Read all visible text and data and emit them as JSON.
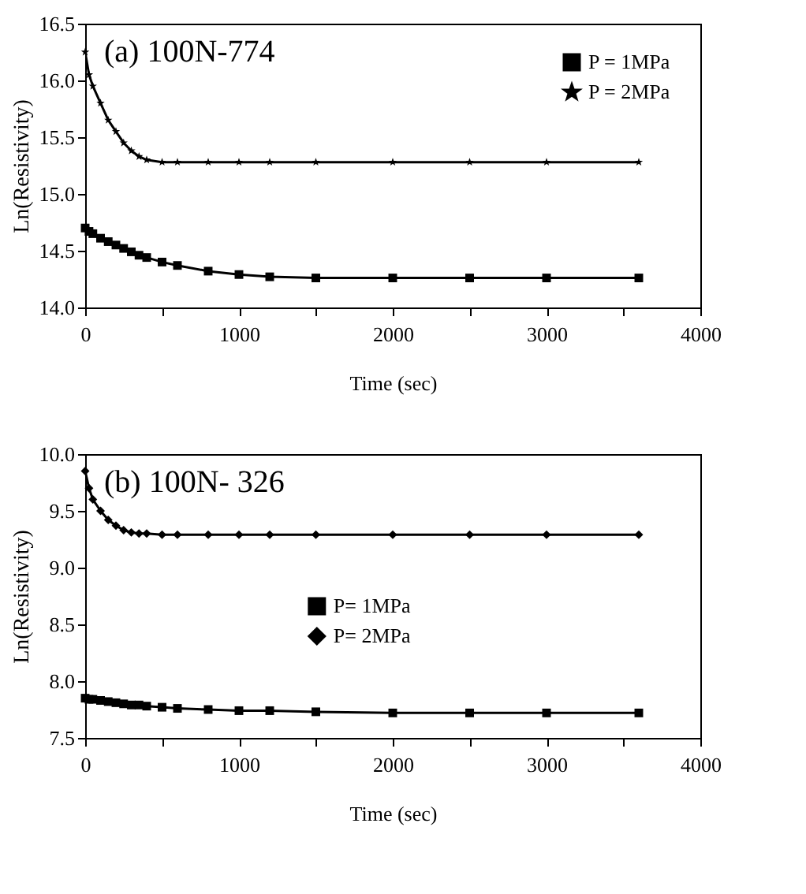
{
  "chart_data": [
    {
      "type": "line",
      "title": "(a) 100N-774",
      "xlabel": "Time (sec)",
      "ylabel": "Ln(Resistivity)",
      "x": [
        0,
        25,
        50,
        100,
        150,
        200,
        250,
        300,
        350,
        400,
        500,
        600,
        800,
        1000,
        1200,
        1500,
        2000,
        2500,
        3000,
        3600
      ],
      "series": [
        {
          "name": "P = 1MPa",
          "color": "#000000",
          "marker": "square",
          "values": [
            14.7,
            14.67,
            14.65,
            14.61,
            14.58,
            14.55,
            14.52,
            14.49,
            14.46,
            14.44,
            14.4,
            14.37,
            14.32,
            14.29,
            14.27,
            14.26,
            14.26,
            14.26,
            14.26,
            14.26
          ]
        },
        {
          "name": "P = 2MPa",
          "color": "#000000",
          "marker": "star",
          "values": [
            16.25,
            16.05,
            15.95,
            15.8,
            15.65,
            15.55,
            15.45,
            15.38,
            15.33,
            15.3,
            15.28,
            15.28,
            15.28,
            15.28,
            15.28,
            15.28,
            15.28,
            15.28,
            15.28,
            15.28
          ]
        }
      ],
      "xlim": [
        0,
        4000
      ],
      "xticks": [
        0,
        {
          "value": 500,
          "label": null
        },
        1000,
        {
          "value": 1500,
          "label": null
        },
        2000,
        {
          "value": 2500,
          "label": null
        },
        3000,
        {
          "value": 3500,
          "label": null
        },
        4000
      ],
      "ylim": [
        14.0,
        16.5
      ],
      "yticks": [
        {
          "value": 14.0,
          "label": "14.0"
        },
        14.5,
        {
          "value": 15.0,
          "label": "15.0"
        },
        15.5,
        {
          "value": 16.0,
          "label": "16.0"
        },
        16.5
      ],
      "legend": "top right",
      "grid": false
    },
    {
      "type": "line",
      "title": "(b) 100N- 326",
      "xlabel": "Time (sec)",
      "ylabel": "Ln(Resistivity)",
      "x": [
        0,
        25,
        50,
        100,
        150,
        200,
        250,
        300,
        350,
        400,
        500,
        600,
        800,
        1000,
        1200,
        1500,
        2000,
        2500,
        3000,
        3600
      ],
      "series": [
        {
          "name": "P= 1MPa",
          "color": "#000000",
          "marker": "square",
          "values": [
            7.85,
            7.84,
            7.84,
            7.83,
            7.82,
            7.81,
            7.8,
            7.79,
            7.79,
            7.78,
            7.77,
            7.76,
            7.75,
            7.74,
            7.74,
            7.73,
            7.72,
            7.72,
            7.72,
            7.72
          ]
        },
        {
          "name": "P= 2MPa",
          "color": "#000000",
          "marker": "diamond",
          "values": [
            9.85,
            9.7,
            9.6,
            9.5,
            9.42,
            9.37,
            9.33,
            9.31,
            9.3,
            9.3,
            9.29,
            9.29,
            9.29,
            9.29,
            9.29,
            9.29,
            9.29,
            9.29,
            9.29,
            9.29
          ]
        }
      ],
      "xlim": [
        0,
        4000
      ],
      "xticks": [
        0,
        {
          "value": 500,
          "label": null
        },
        1000,
        {
          "value": 1500,
          "label": null
        },
        2000,
        {
          "value": 2500,
          "label": null
        },
        3000,
        {
          "value": 3500,
          "label": null
        },
        4000
      ],
      "ylim": [
        7.5,
        10.0
      ],
      "yticks": [
        7.5,
        {
          "value": 8.0,
          "label": "8.0"
        },
        8.5,
        {
          "value": 9.0,
          "label": "9.0"
        },
        9.5,
        {
          "value": 10.0,
          "label": "10.0"
        }
      ],
      "legend": "center",
      "grid": false
    }
  ]
}
